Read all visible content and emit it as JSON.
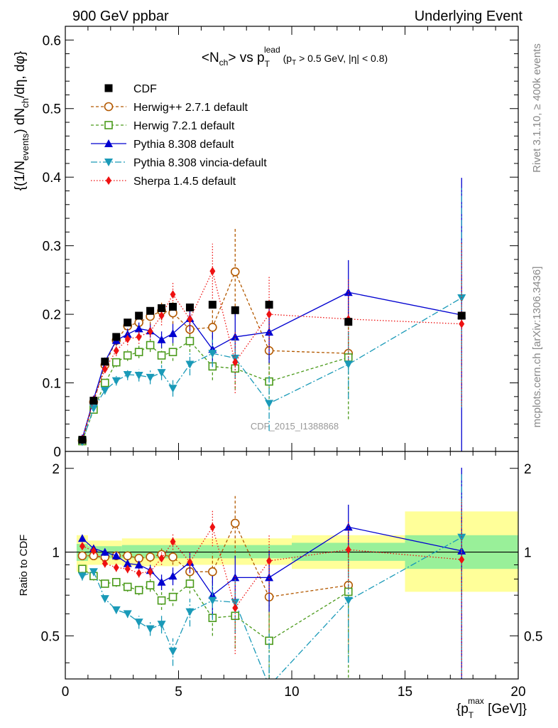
{
  "header": {
    "left": "900 GeV ppbar",
    "right": "Underlying Event"
  },
  "side_labels": {
    "rivet": "Rivet 3.1.10, ≥ 400k events",
    "mcplots": "mcplots.cern.ch [arXiv:1306.3436]"
  },
  "watermark": "CDF_2015_I1388868",
  "colors": {
    "CDF": "#000000",
    "Herwig++ 2.7.1 default": "#b35900",
    "Herwig 7.2.1 default": "#4a9a1a",
    "Pythia 8.308 default": "#0000d0",
    "Pythia 8.308 vincia-default": "#1a9ab8",
    "Sherpa 1.4.5 default": "#ee1111",
    "band_green": "#99f099",
    "band_yellow": "#ffff99"
  },
  "chart_data": [
    {
      "type": "scatter",
      "title": "<N_ch> vs p_T^lead (p_T > 0.5 GeV, |η| < 0.8)",
      "title_parts": {
        "main": "<N",
        "main_sub": "ch",
        "mid": "> vs p",
        "mid_sub": "T",
        "mid_sup": "lead",
        "cut": "(p",
        "cut_sub": "T",
        "cut_rest": " > 0.5 GeV, |η| < 0.8)"
      },
      "ylabel": "{(1/N_events) dN_ch/dη, dφ}",
      "ylabel_parts": {
        "a": "{(1/N",
        "a_sub": "events",
        "b": ") dN",
        "b_sub": "ch",
        "c": "/dη, dφ}"
      },
      "xlim": [
        0,
        20
      ],
      "ylim": [
        0,
        0.62
      ],
      "yticks": [
        0,
        0.1,
        0.2,
        0.3,
        0.4,
        0.5,
        0.6
      ],
      "ytick_labels": [
        "0",
        "0.1",
        "0.2",
        "0.3",
        "0.4",
        "0.5",
        "0.6"
      ],
      "series": [
        {
          "name": "CDF",
          "x": [
            0.75,
            1.25,
            1.75,
            2.25,
            2.75,
            3.25,
            3.75,
            4.25,
            4.75,
            5.5,
            6.5,
            7.5,
            9.0,
            12.5,
            17.5
          ],
          "y": [
            0.017,
            0.074,
            0.131,
            0.167,
            0.188,
            0.198,
            0.205,
            0.209,
            0.211,
            0.21,
            0.214,
            0.206,
            0.214,
            0.189,
            0.198
          ]
        },
        {
          "name": "Herwig++ 2.7.1 default",
          "x": [
            0.75,
            1.25,
            1.75,
            2.25,
            2.75,
            3.25,
            3.75,
            4.25,
            4.75,
            5.5,
            6.5,
            7.5,
            9.0,
            12.5
          ],
          "y": [
            0.016,
            0.072,
            0.126,
            0.162,
            0.183,
            0.188,
            0.197,
            0.205,
            0.202,
            0.178,
            0.181,
            0.262,
            0.147,
            0.143
          ],
          "err": [
            0.004,
            0.005,
            0.006,
            0.008,
            0.009,
            0.01,
            0.012,
            0.014,
            0.016,
            0.018,
            0.03,
            0.065,
            0.05,
            0.06
          ]
        },
        {
          "name": "Herwig 7.2.1 default",
          "x": [
            0.75,
            1.25,
            1.75,
            2.25,
            2.75,
            3.25,
            3.75,
            4.25,
            4.75,
            5.5,
            6.5,
            7.5,
            9.0,
            12.5
          ],
          "y": [
            0.015,
            0.061,
            0.1,
            0.13,
            0.14,
            0.145,
            0.155,
            0.14,
            0.145,
            0.161,
            0.124,
            0.121,
            0.102,
            0.137
          ],
          "err": [
            0.004,
            0.005,
            0.006,
            0.007,
            0.008,
            0.009,
            0.01,
            0.012,
            0.013,
            0.016,
            0.02,
            0.03,
            0.04,
            0.09
          ]
        },
        {
          "name": "Pythia 8.308 default",
          "x": [
            0.75,
            1.25,
            1.75,
            2.25,
            2.75,
            3.25,
            3.75,
            4.25,
            4.75,
            5.5,
            6.5,
            7.5,
            9.0,
            12.5,
            17.5
          ],
          "y": [
            0.019,
            0.076,
            0.131,
            0.162,
            0.171,
            0.179,
            0.176,
            0.163,
            0.172,
            0.194,
            0.149,
            0.167,
            0.174,
            0.232,
            0.199
          ],
          "err": [
            0.004,
            0.005,
            0.006,
            0.007,
            0.008,
            0.009,
            0.01,
            0.012,
            0.014,
            0.018,
            0.025,
            0.035,
            0.045,
            0.047,
            0.2
          ]
        },
        {
          "name": "Pythia 8.308 vincia-default",
          "x": [
            0.75,
            1.25,
            1.75,
            2.25,
            2.75,
            3.25,
            3.75,
            4.25,
            4.75,
            5.5,
            6.5,
            7.5,
            9.0,
            12.5,
            17.5
          ],
          "y": [
            0.014,
            0.063,
            0.089,
            0.103,
            0.112,
            0.111,
            0.108,
            0.115,
            0.092,
            0.127,
            0.143,
            0.136,
            0.07,
            0.127,
            0.224
          ],
          "err": [
            0.004,
            0.005,
            0.006,
            0.007,
            0.008,
            0.009,
            0.01,
            0.011,
            0.012,
            0.016,
            0.02,
            0.03,
            0.04,
            0.05,
            0.16
          ]
        },
        {
          "name": "Sherpa 1.4.5 default",
          "x": [
            0.75,
            1.25,
            1.75,
            2.25,
            2.75,
            3.25,
            3.75,
            4.25,
            4.75,
            5.5,
            6.5,
            7.5,
            9.0,
            12.5,
            17.5
          ],
          "y": [
            0.018,
            0.075,
            0.12,
            0.147,
            0.164,
            0.167,
            0.175,
            0.198,
            0.229,
            0.193,
            0.263,
            0.13,
            0.2,
            0.193,
            0.186
          ],
          "err": [
            0.004,
            0.005,
            0.006,
            0.008,
            0.009,
            0.01,
            0.012,
            0.014,
            0.018,
            0.022,
            0.04,
            0.045,
            0.055,
            0.06,
            0.12
          ]
        }
      ]
    },
    {
      "type": "scatter",
      "ylabel": "Ratio to CDF",
      "xlabel": "{p_T^max [GeV]}",
      "xlabel_parts": {
        "a": "{p",
        "sub": "T",
        "sup": "max",
        "b": " [GeV]}"
      },
      "xlim": [
        0,
        20
      ],
      "ylim": [
        0.35,
        2.3
      ],
      "log_y": true,
      "xticks": [
        0,
        5,
        10,
        15,
        20
      ],
      "xtick_labels": [
        "0",
        "5",
        "10",
        "15",
        "20"
      ],
      "yticks": [
        0.5,
        1,
        2
      ],
      "ytick_labels": [
        "0.5",
        "1",
        "2"
      ],
      "reference_line": 1,
      "bands": [
        {
          "x0": 0.5,
          "x1": 1.0,
          "green": [
            0.93,
            1.07
          ],
          "yellow": [
            0.85,
            1.15
          ]
        },
        {
          "x0": 1.0,
          "x1": 2.5,
          "green": [
            0.95,
            1.05
          ],
          "yellow": [
            0.9,
            1.1
          ]
        },
        {
          "x0": 2.5,
          "x1": 5.0,
          "green": [
            0.95,
            1.06
          ],
          "yellow": [
            0.89,
            1.12
          ]
        },
        {
          "x0": 5.0,
          "x1": 10.0,
          "green": [
            0.95,
            1.06
          ],
          "yellow": [
            0.9,
            1.12
          ]
        },
        {
          "x0": 10.0,
          "x1": 15.0,
          "green": [
            0.93,
            1.08
          ],
          "yellow": [
            0.87,
            1.15
          ]
        },
        {
          "x0": 15.0,
          "x1": 20.0,
          "green": [
            0.87,
            1.15
          ],
          "yellow": [
            0.72,
            1.4
          ]
        }
      ],
      "series": [
        {
          "name": "Herwig++ 2.7.1 default",
          "x": [
            0.75,
            1.25,
            1.75,
            2.25,
            2.75,
            3.25,
            3.75,
            4.25,
            4.75,
            5.5,
            6.5,
            7.5,
            9.0,
            12.5
          ],
          "y": [
            0.97,
            0.97,
            0.96,
            0.97,
            0.97,
            0.95,
            0.96,
            0.98,
            0.96,
            0.85,
            0.85,
            1.27,
            0.69,
            0.76
          ],
          "err": [
            0.03,
            0.03,
            0.03,
            0.03,
            0.03,
            0.03,
            0.04,
            0.05,
            0.06,
            0.07,
            0.14,
            0.32,
            0.23,
            0.32
          ]
        },
        {
          "name": "Herwig 7.2.1 default",
          "x": [
            0.75,
            1.25,
            1.75,
            2.25,
            2.75,
            3.25,
            3.75,
            4.25,
            4.75,
            5.5,
            6.5,
            7.5,
            9.0,
            12.5
          ],
          "y": [
            0.87,
            0.82,
            0.77,
            0.78,
            0.75,
            0.73,
            0.76,
            0.67,
            0.69,
            0.77,
            0.58,
            0.59,
            0.48,
            0.72
          ],
          "err": [
            0.03,
            0.03,
            0.02,
            0.03,
            0.03,
            0.03,
            0.04,
            0.05,
            0.05,
            0.06,
            0.08,
            0.14,
            0.2,
            0.48
          ]
        },
        {
          "name": "Pythia 8.308 default",
          "x": [
            0.75,
            1.25,
            1.75,
            2.25,
            2.75,
            3.25,
            3.75,
            4.25,
            4.75,
            5.5,
            6.5,
            7.5,
            9.0,
            12.5,
            17.5
          ],
          "y": [
            1.12,
            1.03,
            1.0,
            0.97,
            0.91,
            0.9,
            0.86,
            0.78,
            0.82,
            0.92,
            0.7,
            0.81,
            0.81,
            1.23,
            1.01
          ],
          "err": [
            0.03,
            0.03,
            0.03,
            0.03,
            0.03,
            0.03,
            0.04,
            0.05,
            0.06,
            0.08,
            0.12,
            0.16,
            0.2,
            0.25,
            1.0
          ]
        },
        {
          "name": "Pythia 8.308 vincia-default",
          "x": [
            0.75,
            1.25,
            1.75,
            2.25,
            2.75,
            3.25,
            3.75,
            4.25,
            4.75,
            5.5,
            6.5,
            7.5,
            9.0,
            12.5,
            17.5
          ],
          "y": [
            0.82,
            0.85,
            0.68,
            0.62,
            0.6,
            0.56,
            0.53,
            0.55,
            0.44,
            0.61,
            0.67,
            0.66,
            0.33,
            0.67,
            1.13
          ],
          "err": [
            0.03,
            0.03,
            0.02,
            0.02,
            0.02,
            0.03,
            0.03,
            0.04,
            0.05,
            0.07,
            0.1,
            0.15,
            0.18,
            0.27,
            0.8
          ]
        },
        {
          "name": "Sherpa 1.4.5 default",
          "x": [
            0.75,
            1.25,
            1.75,
            2.25,
            2.75,
            3.25,
            3.75,
            4.25,
            4.75,
            5.5,
            6.5,
            7.5,
            9.0,
            12.5,
            17.5
          ],
          "y": [
            1.05,
            1.01,
            0.91,
            0.88,
            0.87,
            0.84,
            0.85,
            0.95,
            1.09,
            0.92,
            1.23,
            0.63,
            0.93,
            1.02,
            0.94
          ],
          "err": [
            0.03,
            0.03,
            0.03,
            0.03,
            0.03,
            0.03,
            0.04,
            0.05,
            0.07,
            0.08,
            0.18,
            0.2,
            0.22,
            0.28,
            0.6
          ]
        }
      ]
    }
  ]
}
